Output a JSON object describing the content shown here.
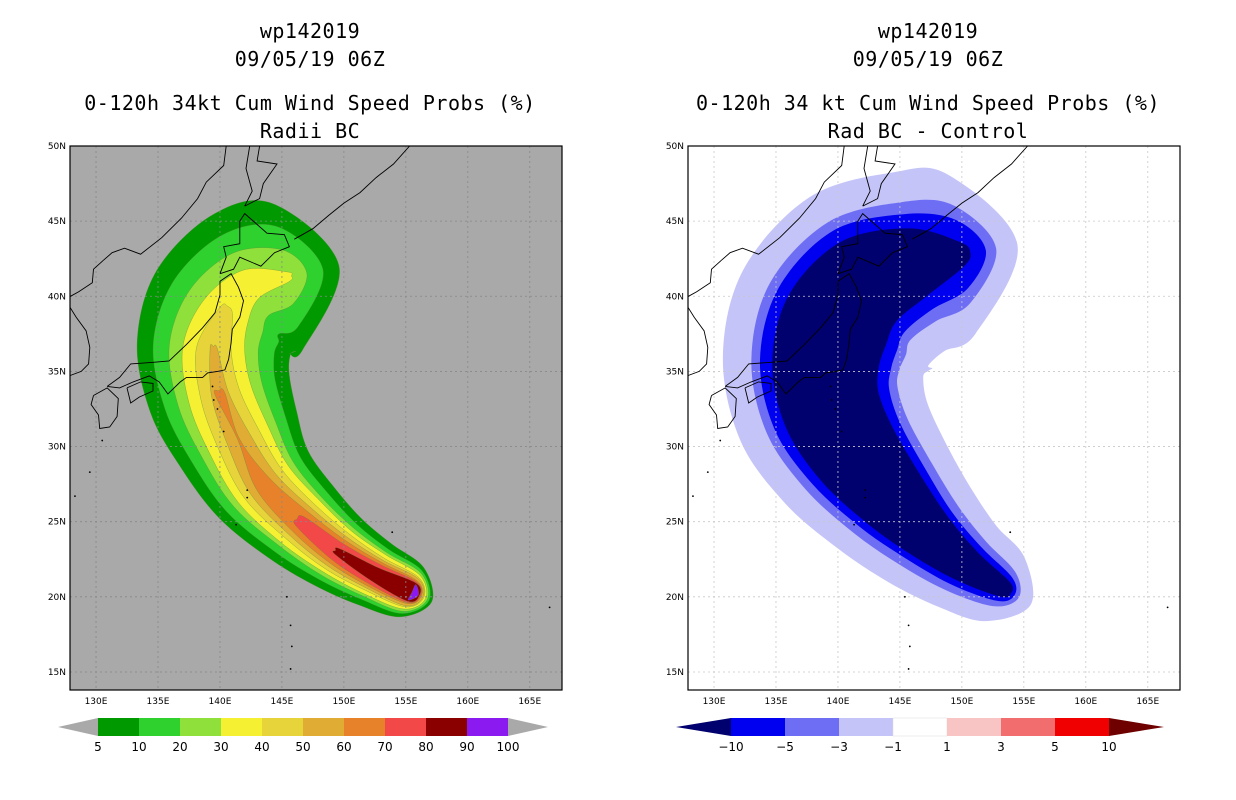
{
  "chart_data": [
    {
      "type": "heatmap",
      "title_lines": [
        "wp142019",
        "09/05/19 06Z",
        "0-120h 34kt Cum Wind Speed Probs (%)",
        "Radii BC"
      ],
      "lon_ticks": [
        "130E",
        "135E",
        "140E",
        "145E",
        "150E",
        "155E",
        "160E",
        "165E"
      ],
      "lat_ticks": [
        "15N",
        "20N",
        "25N",
        "30N",
        "35N",
        "40N",
        "45N",
        "50N"
      ],
      "lon_range": [
        127.9,
        167.6
      ],
      "lat_range": [
        13.8,
        50
      ],
      "colorbar": {
        "labels": [
          "5",
          "10",
          "20",
          "30",
          "40",
          "50",
          "60",
          "70",
          "80",
          "90",
          "100"
        ],
        "colors": [
          "#009a00",
          "#2ed12e",
          "#8fe03a",
          "#f5f032",
          "#e6d43a",
          "#e0ac34",
          "#e8822a",
          "#f24848",
          "#8a0000",
          "#8a1aef"
        ],
        "end_arrow_color": "#a9a9a9"
      },
      "background_color": "#a9a9a9",
      "track_lon": [
        155.5,
        152.5,
        149.5,
        146.5,
        143.5,
        141.5,
        140.0,
        139.5,
        140.5,
        142.5,
        145.5
      ],
      "track_lat": [
        20.3,
        21.5,
        23.0,
        25.0,
        27.5,
        30.5,
        33.5,
        36.5,
        39.0,
        40.8,
        41.3
      ],
      "bands": [
        {
          "level": 5,
          "color": "#009a00",
          "hw": [
            2.2,
            2.8,
            3.3,
            3.9,
            4.5,
            5.2,
            5.8,
            6.2,
            6.5,
            6.4,
            6.0
          ]
        },
        {
          "level": 10,
          "color": "#2ed12e",
          "hw": [
            1.9,
            2.3,
            2.7,
            3.2,
            3.7,
            4.2,
            4.6,
            4.9,
            4.9,
            4.6,
            4.1
          ]
        },
        {
          "level": 20,
          "color": "#8fe03a",
          "hw": [
            1.7,
            2.0,
            2.3,
            2.6,
            3.0,
            3.3,
            3.5,
            3.6,
            3.4,
            2.9,
            2.2
          ]
        },
        {
          "level": 30,
          "color": "#f5f032",
          "hw": [
            1.5,
            1.8,
            2.0,
            2.3,
            2.5,
            2.6,
            2.6,
            2.5,
            2.0,
            1.3,
            0.4
          ]
        },
        {
          "level": 40,
          "color": "#e6d43a",
          "hw": [
            1.3,
            1.5,
            1.7,
            1.8,
            1.9,
            1.8,
            1.6,
            1.4,
            0.6,
            0.0,
            0.0
          ]
        },
        {
          "level": 50,
          "color": "#e0ac34",
          "hw": [
            1.2,
            1.3,
            1.4,
            1.4,
            1.3,
            1.0,
            0.7,
            0.3,
            0.0,
            0.0,
            0.0
          ]
        },
        {
          "level": 60,
          "color": "#e8822a",
          "hw": [
            1.0,
            1.1,
            1.1,
            1.0,
            0.7,
            0.0,
            0.4,
            0.0,
            0.0,
            0.0,
            0.0
          ]
        },
        {
          "level": 70,
          "color": "#f24848",
          "hw": [
            0.9,
            0.9,
            0.8,
            0.5,
            0.0,
            0.0,
            0.0,
            0.0,
            0.0,
            0.0,
            0.0
          ]
        },
        {
          "level": 80,
          "color": "#8a0000",
          "hw": [
            0.8,
            0.6,
            0.3,
            0.0,
            0.0,
            0.0,
            0.0,
            0.0,
            0.0,
            0.0,
            0.0
          ]
        },
        {
          "level": 90,
          "color": "#8a1aef",
          "hw": [
            0.7,
            0.0,
            0.0,
            0.0,
            0.0,
            0.0,
            0.0,
            0.0,
            0.0,
            0.0,
            0.0
          ]
        }
      ]
    },
    {
      "type": "heatmap",
      "title_lines": [
        "wp142019",
        "09/05/19 06Z",
        "0-120h 34 kt Cum Wind Speed Probs (%)",
        "Rad BC - Control"
      ],
      "lon_ticks": [
        "130E",
        "135E",
        "140E",
        "145E",
        "150E",
        "155E",
        "160E",
        "165E"
      ],
      "lat_ticks": [
        "15N",
        "20N",
        "25N",
        "30N",
        "35N",
        "40N",
        "45N",
        "50N"
      ],
      "lon_range": [
        127.9,
        167.6
      ],
      "lat_range": [
        13.8,
        50
      ],
      "colorbar": {
        "labels": [
          "-10",
          "-5",
          "-3",
          "-1",
          "1",
          "3",
          "5",
          "10"
        ],
        "colors": [
          "#00006e",
          "#0000f0",
          "#6e6ef5",
          "#c4c4f8",
          "#ffffff",
          "#f8c4c4",
          "#f26e6e",
          "#f00000",
          "#6e0000"
        ],
        "left_arrow_color": "#00006e",
        "right_arrow_color": "#6e0000"
      },
      "background_color": "#ffffff",
      "track_lon": [
        153.5,
        150.5,
        147.5,
        144.5,
        141.5,
        139.5,
        139.0,
        140.0,
        142.5,
        146.5,
        150.0
      ],
      "track_lat": [
        20.5,
        22.0,
        24.0,
        26.5,
        29.5,
        32.5,
        35.5,
        38.5,
        41.0,
        42.3,
        42.8
      ],
      "bands": [
        {
          "level": -1,
          "color": "#c4c4f8",
          "hw": [
            3.0,
            4.0,
            5.0,
            6.0,
            7.0,
            7.8,
            8.3,
            8.6,
            8.3,
            7.5,
            6.5
          ]
        },
        {
          "level": -3,
          "color": "#6e6ef5",
          "hw": [
            1.6,
            2.5,
            3.3,
            4.2,
            5.0,
            5.6,
            6.0,
            6.2,
            5.8,
            5.0,
            4.0
          ]
        },
        {
          "level": -5,
          "color": "#0000f0",
          "hw": [
            1.1,
            1.9,
            2.6,
            3.5,
            4.3,
            4.9,
            5.3,
            5.4,
            5.0,
            4.0,
            2.8
          ]
        },
        {
          "level": -10,
          "color": "#00006e",
          "hw": [
            0.7,
            1.4,
            2.1,
            2.9,
            3.6,
            4.0,
            4.3,
            4.4,
            3.9,
            2.8,
            1.0
          ]
        }
      ]
    }
  ]
}
